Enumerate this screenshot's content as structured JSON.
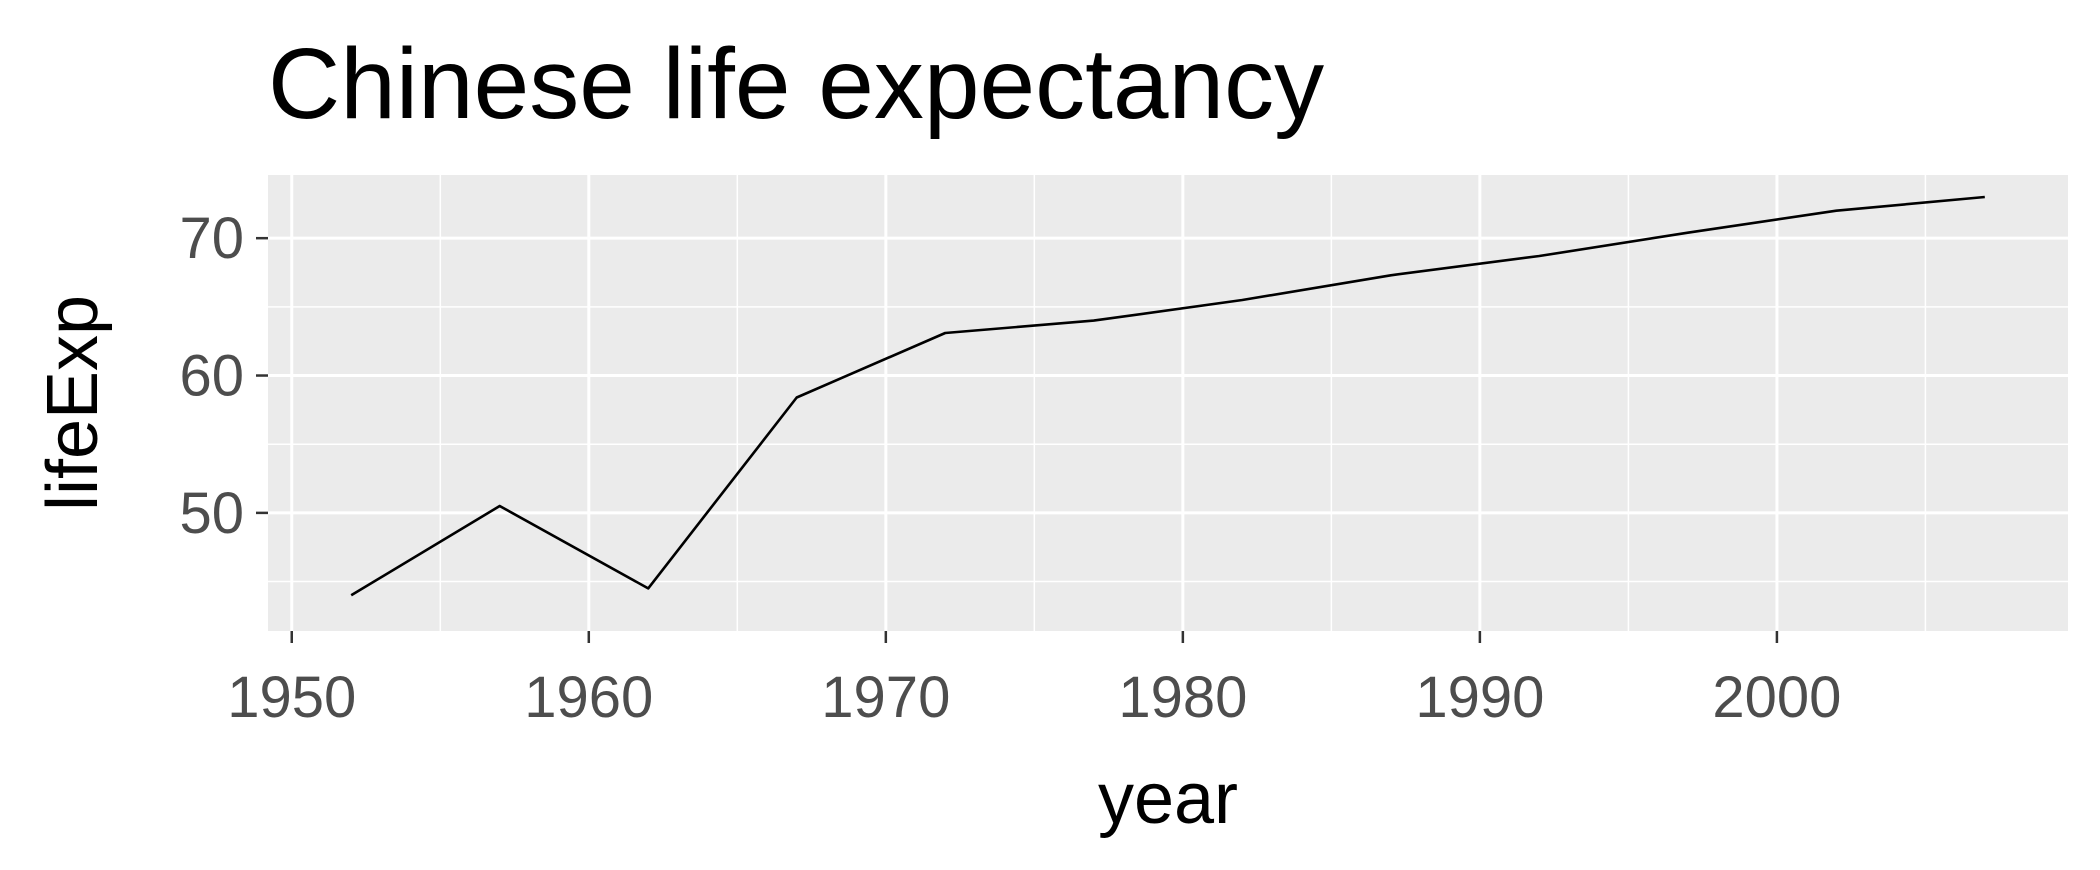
{
  "chart_data": {
    "type": "line",
    "title": "Chinese life expectancy",
    "xlabel": "year",
    "ylabel": "lifeExp",
    "x": [
      1952,
      1957,
      1962,
      1967,
      1972,
      1977,
      1982,
      1987,
      1992,
      1997,
      2002,
      2007
    ],
    "series": [
      {
        "values": [
          44.0,
          50.5,
          44.5,
          58.4,
          63.1,
          64.0,
          65.5,
          67.3,
          68.7,
          70.4,
          72.0,
          73.0
        ]
      }
    ],
    "xlim": [
      1949.2,
      2009.8
    ],
    "ylim": [
      41.4,
      74.6
    ],
    "x_ticks": [
      1950,
      1960,
      1970,
      1980,
      1990,
      2000
    ],
    "y_ticks": [
      50,
      60,
      70
    ],
    "grid": true,
    "legend": "none",
    "colors": {
      "panel_background": "#ebebeb",
      "grid_line": "#ffffff",
      "series_line": "#000000",
      "tick_label": "#4d4d4d",
      "tick_mark": "#333333"
    }
  }
}
